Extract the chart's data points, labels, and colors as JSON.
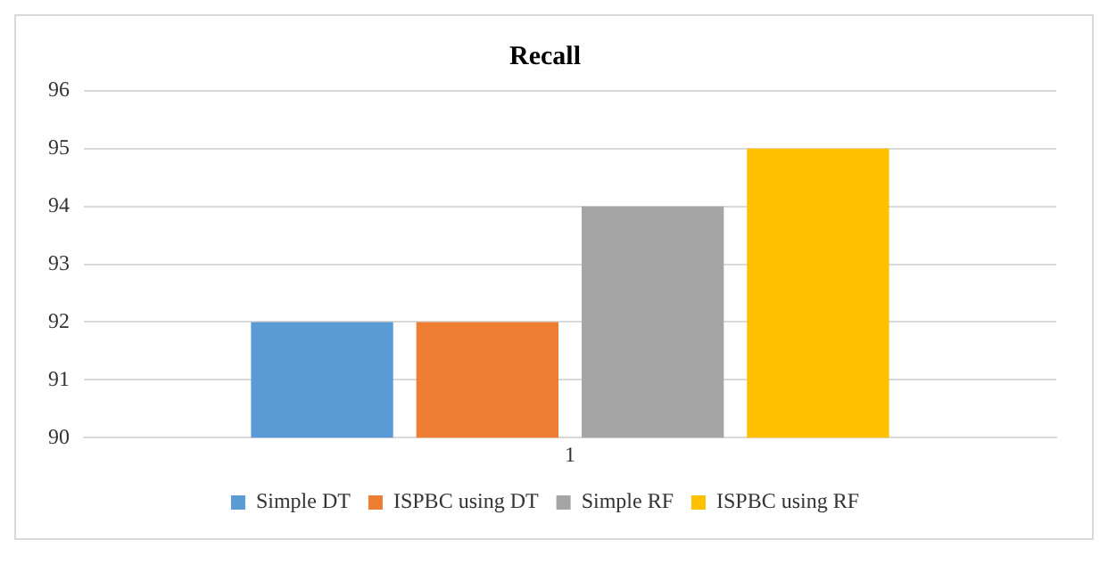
{
  "chart_data": {
    "type": "bar",
    "title": "Recall",
    "categories": [
      "1"
    ],
    "series": [
      {
        "name": "Simple DT",
        "color": "#5b9bd5",
        "values": [
          92
        ]
      },
      {
        "name": "ISPBC using DT",
        "color": "#ed7d31",
        "values": [
          92
        ]
      },
      {
        "name": "Simple RF",
        "color": "#a5a5a5",
        "values": [
          94
        ]
      },
      {
        "name": "ISPBC using RF",
        "color": "#ffc000",
        "values": [
          95
        ]
      }
    ],
    "ylim": [
      90,
      96
    ],
    "yticks": [
      90,
      91,
      92,
      93,
      94,
      95,
      96
    ],
    "grid": "y",
    "legend": "bottom"
  }
}
